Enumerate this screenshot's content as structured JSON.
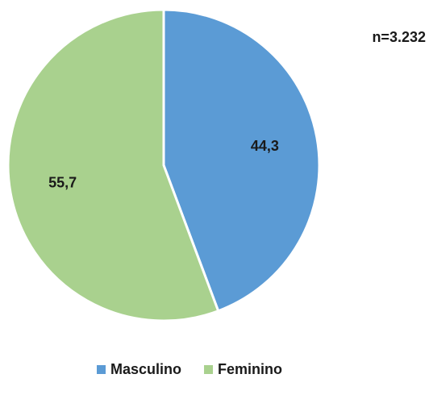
{
  "chart_data": {
    "type": "pie",
    "categories": [
      "Masculino",
      "Feminino"
    ],
    "values": [
      44.3,
      55.7
    ],
    "value_labels": [
      "44,3",
      "55,7"
    ],
    "colors": [
      "#5b9bd5",
      "#a9d18e"
    ],
    "annotation": "n=3.232",
    "legend": "bottom"
  }
}
